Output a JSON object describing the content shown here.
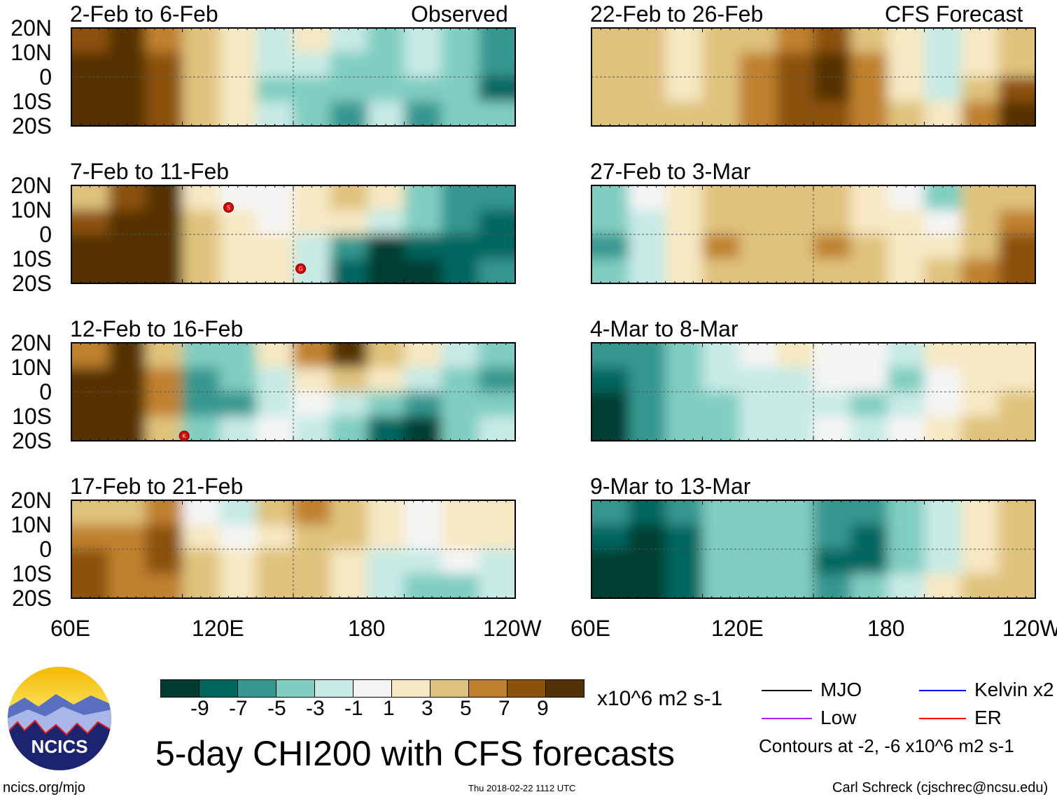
{
  "title": "5-day CHI200 with CFS forecasts",
  "observed_label": "Observed",
  "forecast_label": "CFS Forecast",
  "lat_labels": [
    "20N",
    "10N",
    "0",
    "10S",
    "20S"
  ],
  "lon_labels": [
    "60E",
    "120E",
    "180",
    "120W"
  ],
  "colorbar": {
    "colors": [
      "#003c30",
      "#01665e",
      "#35978f",
      "#80cdc1",
      "#c7eae5",
      "#f5f5f5",
      "#f6e8c3",
      "#dfc27d",
      "#bf812d",
      "#8c510a",
      "#543005"
    ],
    "ticks": [
      "-9",
      "-7",
      "-5",
      "-3",
      "-1",
      "1",
      "3",
      "5",
      "7",
      "9"
    ],
    "units": "x10^6 m2 s-1"
  },
  "legend": {
    "items": [
      {
        "label": "MJO",
        "color": "#000000"
      },
      {
        "label": "Kelvin x2",
        "color": "#0000ff"
      },
      {
        "label": "Low",
        "color": "#a020f0"
      },
      {
        "label": "ER",
        "color": "#ff0000"
      }
    ],
    "note": "Contours at -2, -6 x10^6 m2 s-1"
  },
  "footer": {
    "url": "ncics.org/mjo",
    "timestamp": "Thu 2018-02-22 1112 UTC",
    "credit": "Carl Schreck (cjschrec@ncsu.edu)",
    "logo_text": "NCICS"
  },
  "panels": [
    {
      "title": "2-Feb to 6-Feb",
      "field": [
        [
          7,
          9,
          5,
          3,
          1,
          -1,
          1,
          -1,
          -3,
          -1,
          -3,
          -5
        ],
        [
          9,
          9,
          7,
          3,
          1,
          -1,
          -1,
          -3,
          -3,
          -1,
          -3,
          -5
        ],
        [
          9,
          9,
          7,
          3,
          1,
          -3,
          -3,
          -3,
          -3,
          -3,
          -3,
          -7
        ],
        [
          9,
          9,
          7,
          3,
          1,
          -1,
          -3,
          -5,
          -1,
          -5,
          -3,
          -3
        ]
      ],
      "storms": []
    },
    {
      "title": "7-Feb to 11-Feb",
      "field": [
        [
          3,
          7,
          9,
          1,
          0,
          0,
          1,
          3,
          1,
          -3,
          -5,
          -5
        ],
        [
          7,
          9,
          9,
          3,
          1,
          0,
          1,
          1,
          -1,
          -3,
          -5,
          -7
        ],
        [
          9,
          9,
          9,
          3,
          1,
          1,
          -1,
          -5,
          -9,
          -7,
          -7,
          -7
        ],
        [
          9,
          9,
          9,
          3,
          1,
          1,
          -1,
          -7,
          -9,
          -9,
          -7,
          -5
        ]
      ],
      "storms": [
        {
          "label": "S",
          "lon": 145,
          "lat": 11
        },
        {
          "label": "G",
          "lon": 184,
          "lat": -14
        }
      ]
    },
    {
      "title": "12-Feb to 16-Feb",
      "field": [
        [
          5,
          9,
          3,
          -3,
          -3,
          1,
          5,
          9,
          3,
          1,
          -1,
          -3
        ],
        [
          9,
          9,
          5,
          -5,
          -3,
          -1,
          1,
          3,
          1,
          -1,
          -3,
          -5
        ],
        [
          9,
          9,
          5,
          -5,
          -5,
          -1,
          0,
          -1,
          -3,
          -5,
          -3,
          -3
        ],
        [
          9,
          9,
          3,
          -3,
          -1,
          0,
          -1,
          -3,
          -7,
          -9,
          -3,
          -1
        ]
      ],
      "storms": [
        {
          "label": "K",
          "lon": 121,
          "lat": -18
        }
      ]
    },
    {
      "title": "17-Feb to 21-Feb",
      "field": [
        [
          3,
          3,
          5,
          0,
          -1,
          3,
          5,
          3,
          1,
          0,
          1,
          1
        ],
        [
          5,
          5,
          7,
          1,
          0,
          1,
          3,
          3,
          1,
          0,
          1,
          1
        ],
        [
          7,
          5,
          7,
          3,
          1,
          3,
          3,
          1,
          -1,
          -1,
          0,
          -1
        ],
        [
          7,
          5,
          5,
          3,
          1,
          3,
          3,
          1,
          -1,
          -3,
          -3,
          -1
        ]
      ],
      "storms": []
    },
    {
      "title": "22-Feb to 26-Feb",
      "field": [
        [
          3,
          3,
          1,
          3,
          3,
          5,
          7,
          3,
          1,
          -1,
          1,
          3
        ],
        [
          3,
          3,
          1,
          3,
          5,
          7,
          9,
          5,
          1,
          -1,
          1,
          3
        ],
        [
          3,
          3,
          1,
          3,
          5,
          7,
          9,
          5,
          1,
          -1,
          3,
          7
        ],
        [
          3,
          3,
          3,
          3,
          5,
          7,
          7,
          5,
          3,
          1,
          5,
          9
        ]
      ],
      "storms": []
    },
    {
      "title": "27-Feb to 3-Mar",
      "field": [
        [
          -3,
          0,
          1,
          3,
          3,
          3,
          3,
          1,
          0,
          -3,
          3,
          3
        ],
        [
          -3,
          -1,
          1,
          3,
          3,
          3,
          3,
          1,
          1,
          0,
          3,
          5
        ],
        [
          -5,
          -1,
          1,
          5,
          3,
          3,
          5,
          3,
          1,
          1,
          3,
          7
        ],
        [
          -3,
          -1,
          1,
          3,
          3,
          3,
          3,
          3,
          1,
          3,
          5,
          7
        ]
      ],
      "storms": []
    },
    {
      "title": "4-Mar to 8-Mar",
      "field": [
        [
          -5,
          -5,
          -3,
          -1,
          0,
          1,
          0,
          0,
          -1,
          1,
          1,
          1
        ],
        [
          -7,
          -5,
          -3,
          -1,
          -1,
          -1,
          0,
          0,
          -3,
          0,
          1,
          1
        ],
        [
          -9,
          -5,
          -3,
          -3,
          -1,
          -1,
          -1,
          -3,
          -1,
          0,
          1,
          3
        ],
        [
          -9,
          -5,
          -3,
          -3,
          -1,
          -1,
          0,
          -1,
          0,
          1,
          3,
          3
        ]
      ],
      "storms": []
    },
    {
      "title": "9-Mar to 13-Mar",
      "field": [
        [
          -5,
          -7,
          -5,
          -3,
          -3,
          -3,
          -5,
          -5,
          -3,
          -1,
          1,
          3
        ],
        [
          -7,
          -9,
          -7,
          -3,
          -3,
          -3,
          -5,
          -7,
          -3,
          -1,
          1,
          3
        ],
        [
          -9,
          -9,
          -7,
          -3,
          -3,
          -3,
          -7,
          -7,
          -3,
          -1,
          1,
          3
        ],
        [
          -9,
          -9,
          -7,
          -3,
          -3,
          -3,
          -5,
          -3,
          -1,
          1,
          3,
          3
        ]
      ],
      "storms": []
    }
  ]
}
